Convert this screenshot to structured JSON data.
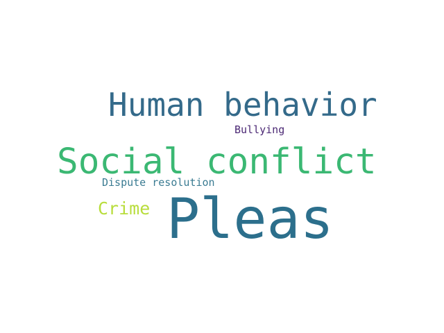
{
  "colors": {
    "background": "#ffffff"
  },
  "words": [
    {
      "key": "pleas",
      "text": "Pleas",
      "color": "#2c6f8c"
    },
    {
      "key": "social",
      "text": "Social conflict",
      "color": "#3bb873"
    },
    {
      "key": "human",
      "text": "Human behavior",
      "color": "#346a8a"
    },
    {
      "key": "crime",
      "text": "Crime",
      "color": "#b8dd3c"
    },
    {
      "key": "dispute",
      "text": "Dispute resolution",
      "color": "#3a7b92"
    },
    {
      "key": "bullying",
      "text": "Bullying",
      "color": "#4b2874"
    }
  ]
}
